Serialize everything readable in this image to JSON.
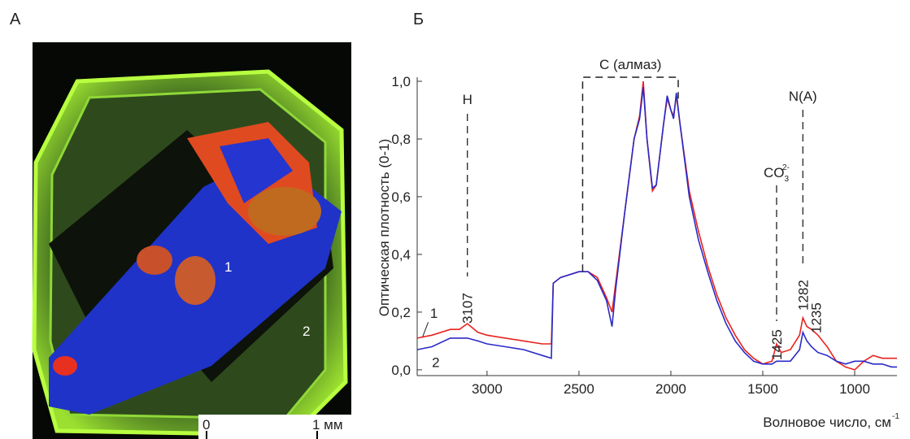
{
  "panel_a": {
    "label": "А",
    "point_labels": [
      "1",
      "2"
    ],
    "scale_labels": [
      "0",
      "1 мм"
    ]
  },
  "chart_data": {
    "type": "line",
    "panel_label": "Б",
    "ylabel": "Оптическая плотность (0-1)",
    "xlabel": "Волновое число, см",
    "xlabel_sup": "-1",
    "xlim": [
      3380,
      770
    ],
    "ylim": [
      -0.02,
      1.0
    ],
    "xticks": [
      3000,
      2500,
      2000,
      1500,
      1000
    ],
    "yticks": [
      {
        "value": 0,
        "label": "0,0"
      },
      {
        "value": 0.2,
        "label": "0,2"
      },
      {
        "value": 0.4,
        "label": "0,4"
      },
      {
        "value": 0.6,
        "label": "0,6"
      },
      {
        "value": 0.8,
        "label": "0,8"
      },
      {
        "value": 1.0,
        "label": "1,0"
      }
    ],
    "x": [
      3380,
      3300,
      3200,
      3150,
      3107,
      3050,
      3000,
      2900,
      2800,
      2700,
      2650,
      2640,
      2600,
      2500,
      2450,
      2400,
      2350,
      2320,
      2300,
      2250,
      2200,
      2170,
      2150,
      2130,
      2100,
      2080,
      2040,
      2020,
      2000,
      1985,
      1970,
      1950,
      1900,
      1850,
      1800,
      1750,
      1700,
      1650,
      1600,
      1550,
      1500,
      1450,
      1425,
      1400,
      1350,
      1300,
      1282,
      1260,
      1235,
      1200,
      1150,
      1100,
      1050,
      1000,
      950,
      900,
      850,
      800,
      770
    ],
    "series": [
      {
        "name": "1",
        "color": "#e8231e",
        "values": [
          0.11,
          0.12,
          0.14,
          0.14,
          0.16,
          0.13,
          0.12,
          0.11,
          0.1,
          0.09,
          0.09,
          0.3,
          0.32,
          0.34,
          0.34,
          0.32,
          0.25,
          0.2,
          0.3,
          0.55,
          0.8,
          0.88,
          1.0,
          0.8,
          0.62,
          0.64,
          0.85,
          0.94,
          0.9,
          0.88,
          0.95,
          0.85,
          0.62,
          0.48,
          0.36,
          0.26,
          0.18,
          0.12,
          0.07,
          0.04,
          0.02,
          0.03,
          0.09,
          0.06,
          0.07,
          0.12,
          0.18,
          0.15,
          0.14,
          0.12,
          0.08,
          0.03,
          0.01,
          0.0,
          0.03,
          0.05,
          0.04,
          0.04,
          0.04
        ]
      },
      {
        "name": "2",
        "color": "#2a2ac8",
        "values": [
          0.07,
          0.08,
          0.11,
          0.11,
          0.11,
          0.1,
          0.09,
          0.08,
          0.07,
          0.05,
          0.04,
          0.3,
          0.32,
          0.34,
          0.34,
          0.31,
          0.24,
          0.15,
          0.28,
          0.55,
          0.8,
          0.87,
          0.98,
          0.8,
          0.63,
          0.64,
          0.85,
          0.95,
          0.9,
          0.87,
          0.96,
          0.85,
          0.6,
          0.45,
          0.34,
          0.24,
          0.16,
          0.1,
          0.06,
          0.03,
          0.02,
          0.02,
          0.03,
          0.03,
          0.03,
          0.07,
          0.13,
          0.1,
          0.08,
          0.06,
          0.05,
          0.03,
          0.02,
          0.03,
          0.03,
          0.02,
          0.02,
          0.01,
          0.01
        ]
      }
    ],
    "bracket": {
      "text": "C (алмаз)",
      "x": [
        2480,
        1960
      ]
    },
    "line_labels": [
      {
        "text": "H",
        "x": 3107
      },
      {
        "text": "CO",
        "sub": "3",
        "sup": "2-",
        "x": 1425
      },
      {
        "text": "N(A)",
        "x": 1282
      }
    ],
    "peak_labels": [
      3107,
      1425,
      1282,
      1235
    ]
  }
}
